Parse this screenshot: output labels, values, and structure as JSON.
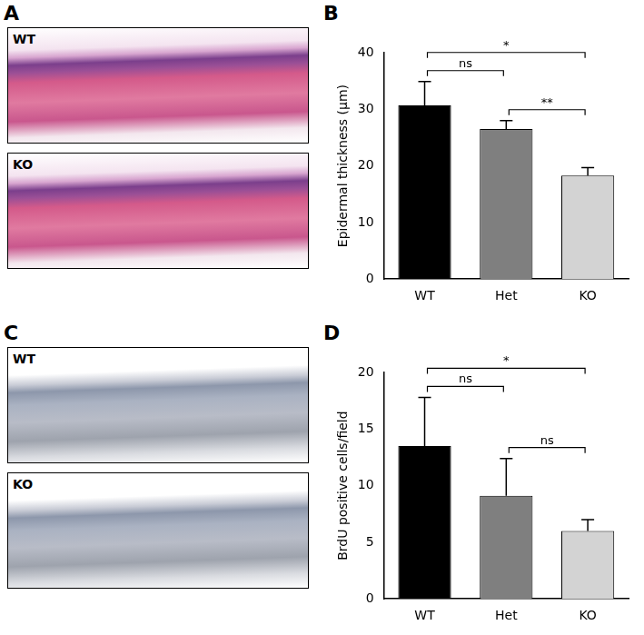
{
  "image_panels": [
    {
      "panel": "A",
      "style": "he",
      "labels": [
        "WT",
        "KO"
      ]
    },
    {
      "panel": "C",
      "style": "ihc",
      "labels": [
        "WT",
        "KO"
      ]
    }
  ],
  "chart_data": [
    {
      "panel": "B",
      "type": "bar",
      "y_label": "Epidermal thickness (µm)",
      "categories": [
        "WT",
        "Het",
        "KO"
      ],
      "values": [
        30.7,
        26.5,
        18.3
      ],
      "errors": [
        4.2,
        1.5,
        1.4
      ],
      "colors": [
        "#000000",
        "#7f7f7f",
        "#d3d3d3"
      ],
      "ylim": [
        0,
        40
      ],
      "yticks": [
        0,
        10,
        20,
        30,
        40
      ],
      "grid": false,
      "annotations": [
        {
          "from": "WT",
          "to": "Het",
          "label": "ns"
        },
        {
          "from": "Het",
          "to": "KO",
          "label": "**"
        },
        {
          "from": "WT",
          "to": "KO",
          "label": "*"
        }
      ]
    },
    {
      "panel": "D",
      "type": "bar",
      "y_label": "BrdU positive cells/field",
      "categories": [
        "WT",
        "Het",
        "KO"
      ],
      "values": [
        13.5,
        9.1,
        6.0
      ],
      "errors": [
        4.3,
        3.3,
        1.0
      ],
      "colors": [
        "#000000",
        "#7f7f7f",
        "#d3d3d3"
      ],
      "ylim": [
        0,
        20
      ],
      "yticks": [
        0,
        5,
        10,
        15,
        20
      ],
      "grid": false,
      "annotations": [
        {
          "from": "WT",
          "to": "Het",
          "label": "ns"
        },
        {
          "from": "Het",
          "to": "KO",
          "label": "ns"
        },
        {
          "from": "WT",
          "to": "KO",
          "label": "*"
        }
      ]
    }
  ]
}
